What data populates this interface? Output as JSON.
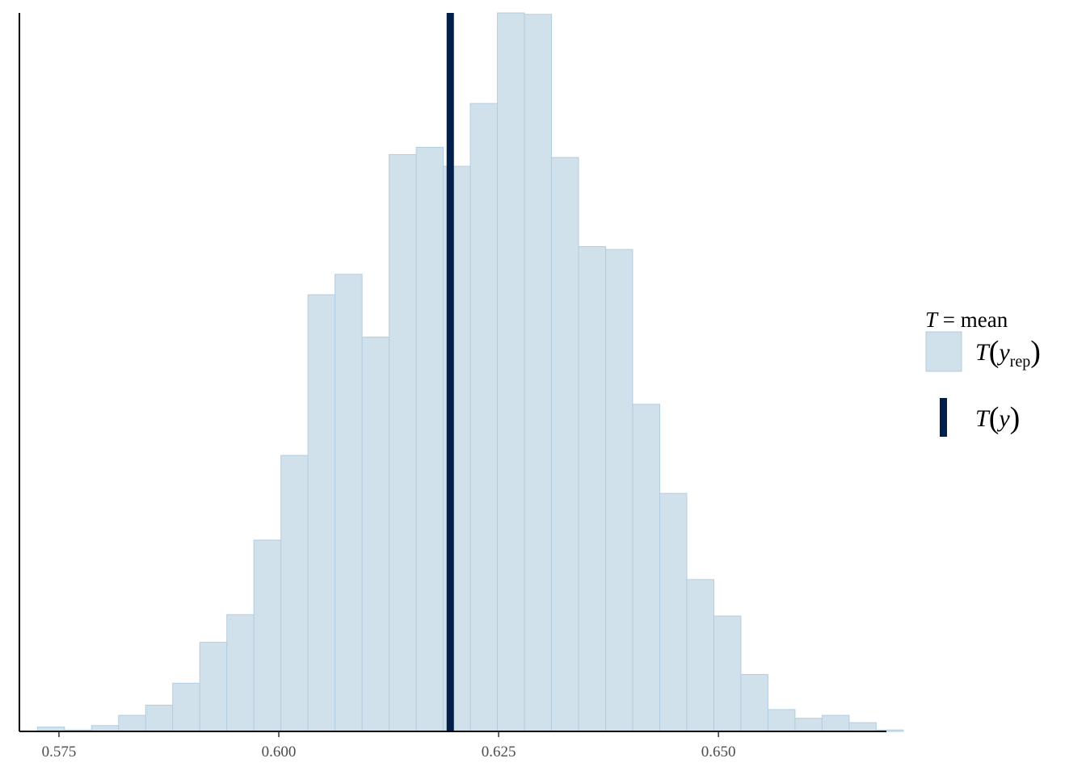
{
  "chart_data": {
    "type": "bar",
    "subtype": "histogram",
    "xlabel": "",
    "ylabel": "",
    "x_ticks": [
      "0.575",
      "0.600",
      "0.625",
      "0.650"
    ],
    "xlim": [
      0.5705,
      0.6691
    ],
    "bin_width": 0.003077,
    "bin_edges_start": 0.57255,
    "counts": [
      3,
      1,
      4,
      11,
      18,
      33,
      61,
      80,
      131,
      189,
      299,
      313,
      270,
      395,
      400,
      387,
      430,
      492,
      491,
      393,
      332,
      330,
      224,
      163,
      104,
      79,
      39,
      15,
      9,
      11,
      6,
      1
    ],
    "y_axis_shown": false,
    "observed": {
      "label": "T(y)",
      "value": 0.6195
    },
    "grid": false,
    "colors": {
      "bar_fill": "#d1e1ec",
      "bar_stroke": "#b3cde0",
      "observed_line": "#011f4b",
      "axis": "#000000"
    },
    "legend": {
      "placement": "right",
      "title_italic": "T",
      "title_rest": " = mean",
      "entries": [
        {
          "kind": "bar",
          "main": "T",
          "sub_var": "y",
          "sub_text": "rep"
        },
        {
          "kind": "line",
          "main": "T",
          "sub_var": "y",
          "sub_text": ""
        }
      ]
    }
  }
}
